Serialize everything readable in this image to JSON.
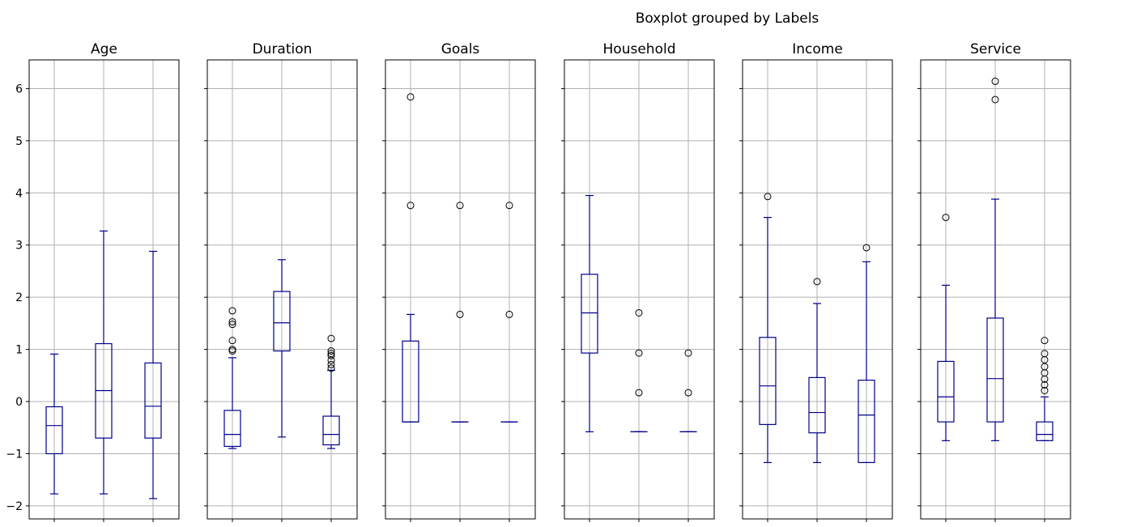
{
  "chart_data": {
    "type": "boxplot",
    "title": "Boxplot grouped by Labels",
    "grid": true,
    "ylim": [
      -2.25,
      6.55
    ],
    "y_ticks": [
      {
        "value": -2,
        "label": "−2"
      },
      {
        "value": -1,
        "label": "−1"
      },
      {
        "value": 0,
        "label": "0"
      },
      {
        "value": 1,
        "label": "1"
      },
      {
        "value": 2,
        "label": "2"
      },
      {
        "value": 3,
        "label": "3"
      },
      {
        "value": 4,
        "label": "4"
      },
      {
        "value": 5,
        "label": "5"
      },
      {
        "value": 6,
        "label": "6"
      }
    ],
    "colors": {
      "box": "#00008b",
      "grid": "#b0b0b0",
      "flier": "#000000"
    },
    "panels": [
      {
        "title": "Age",
        "groups": [
          {
            "whislo": -1.77,
            "q1": -1.0,
            "med": -0.46,
            "q3": -0.1,
            "whishi": 0.91,
            "fliers": []
          },
          {
            "whislo": -1.77,
            "q1": -0.7,
            "med": 0.21,
            "q3": 1.11,
            "whishi": 3.27,
            "fliers": []
          },
          {
            "whislo": -1.86,
            "q1": -0.7,
            "med": -0.09,
            "q3": 0.74,
            "whishi": 2.88,
            "fliers": []
          }
        ]
      },
      {
        "title": "Duration",
        "groups": [
          {
            "whislo": -0.9,
            "q1": -0.86,
            "med": -0.63,
            "q3": -0.17,
            "whishi": 0.84,
            "fliers": [
              0.97,
              1.0,
              1.17,
              1.48,
              1.53,
              1.74
            ]
          },
          {
            "whislo": -0.68,
            "q1": 0.97,
            "med": 1.51,
            "q3": 2.11,
            "whishi": 2.72,
            "fliers": []
          },
          {
            "whislo": -0.9,
            "q1": -0.83,
            "med": -0.63,
            "q3": -0.28,
            "whishi": 0.6,
            "fliers": [
              0.64,
              0.71,
              0.79,
              0.88,
              0.92,
              0.97,
              1.21
            ]
          }
        ]
      },
      {
        "title": "Goals",
        "groups": [
          {
            "whislo": -0.39,
            "q1": -0.39,
            "med": -0.39,
            "q3": 1.16,
            "whishi": 1.67,
            "fliers": [
              3.76,
              5.84
            ]
          },
          {
            "whislo": -0.39,
            "q1": -0.39,
            "med": -0.39,
            "q3": -0.39,
            "whishi": -0.39,
            "fliers": [
              1.67,
              3.76
            ]
          },
          {
            "whislo": -0.39,
            "q1": -0.39,
            "med": -0.39,
            "q3": -0.39,
            "whishi": -0.39,
            "fliers": [
              1.67,
              3.76
            ]
          }
        ]
      },
      {
        "title": "Household",
        "groups": [
          {
            "whislo": -0.58,
            "q1": 0.93,
            "med": 1.7,
            "q3": 2.44,
            "whishi": 3.95,
            "fliers": []
          },
          {
            "whislo": -0.58,
            "q1": -0.58,
            "med": -0.58,
            "q3": -0.58,
            "whishi": -0.58,
            "fliers": [
              0.17,
              0.93,
              1.7
            ]
          },
          {
            "whislo": -0.58,
            "q1": -0.58,
            "med": -0.58,
            "q3": -0.58,
            "whishi": -0.58,
            "fliers": [
              0.17,
              0.93
            ]
          }
        ]
      },
      {
        "title": "Income",
        "groups": [
          {
            "whislo": -1.17,
            "q1": -0.44,
            "med": 0.3,
            "q3": 1.23,
            "whishi": 3.53,
            "fliers": [
              3.93
            ]
          },
          {
            "whislo": -1.17,
            "q1": -0.6,
            "med": -0.21,
            "q3": 0.46,
            "whishi": 1.88,
            "fliers": [
              2.3
            ]
          },
          {
            "whislo": -1.17,
            "q1": -1.17,
            "med": -0.26,
            "q3": 0.41,
            "whishi": 2.68,
            "fliers": [
              2.95
            ]
          }
        ]
      },
      {
        "title": "Service",
        "groups": [
          {
            "whislo": -0.75,
            "q1": -0.39,
            "med": 0.09,
            "q3": 0.77,
            "whishi": 2.23,
            "fliers": [
              3.53
            ]
          },
          {
            "whislo": -0.75,
            "q1": -0.39,
            "med": 0.44,
            "q3": 1.6,
            "whishi": 3.88,
            "fliers": [
              5.79,
              6.14
            ]
          },
          {
            "whislo": -0.75,
            "q1": -0.75,
            "med": -0.63,
            "q3": -0.39,
            "whishi": 0.09,
            "fliers": [
              0.21,
              0.32,
              0.43,
              0.55,
              0.67,
              0.8,
              0.92,
              1.17
            ]
          }
        ]
      }
    ]
  }
}
